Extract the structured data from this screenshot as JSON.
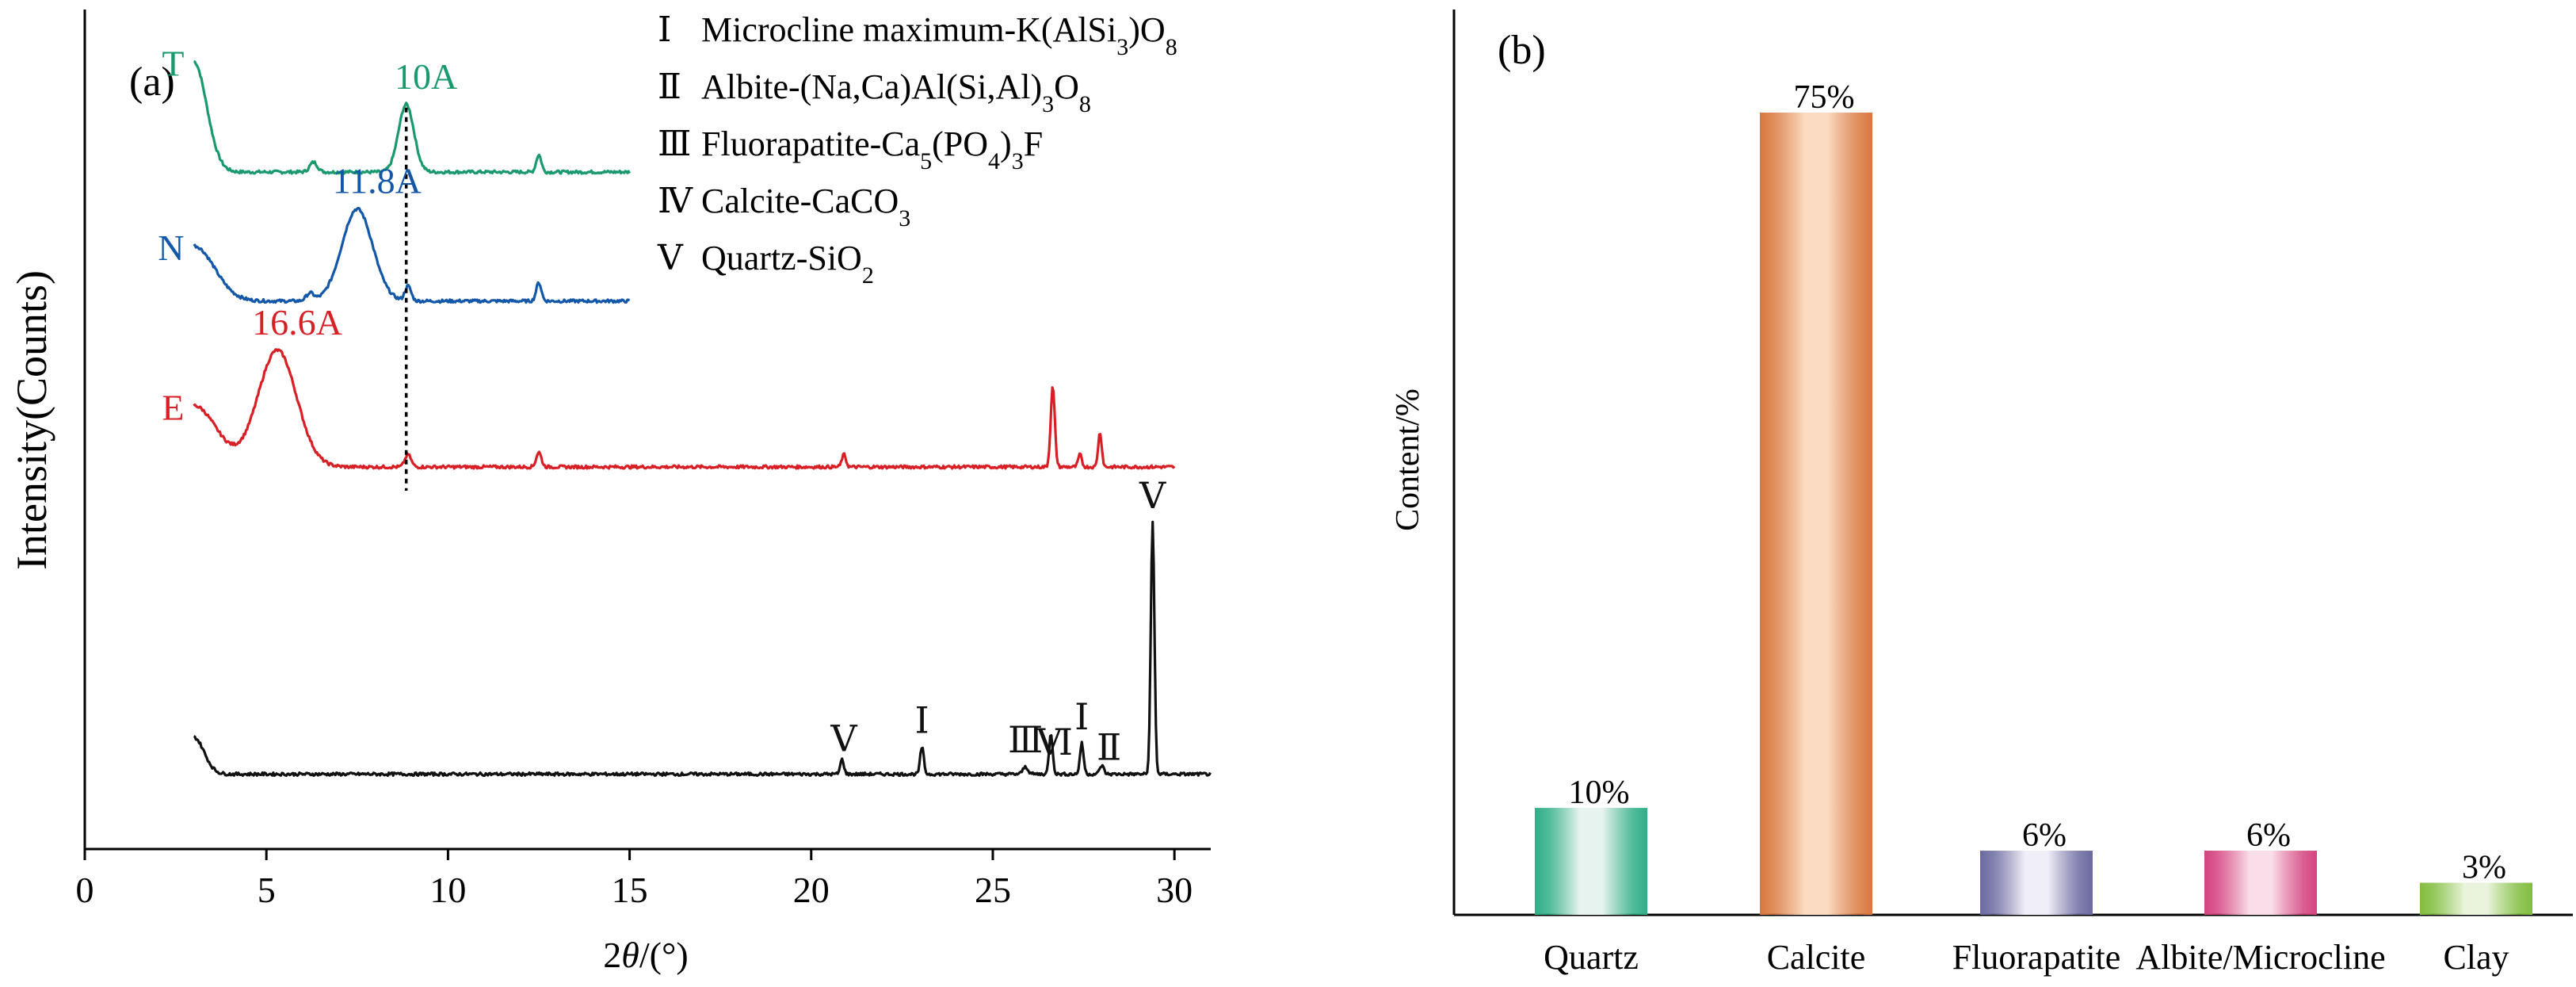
{
  "chart_data": [
    {
      "panel_label": "(a)",
      "type": "line",
      "xlabel": "2θ/(°)",
      "ylabel": "Intensity(Counts)",
      "xlim": [
        0,
        31
      ],
      "x_ticks": [
        0,
        5,
        10,
        15,
        20,
        25,
        30
      ],
      "x_tick_labels": [
        "0",
        "5",
        "10",
        "15",
        "20",
        "25",
        "30"
      ],
      "y_ticks": "none",
      "grid": false,
      "legend_position": "top-center",
      "legend": {
        "entries": [
          {
            "numeral": "Ⅰ",
            "text": "Microcline maximum-K(AlSi",
            "sub1": "3",
            "mid": ")O",
            "sub2": "8",
            "tail": ""
          },
          {
            "numeral": "Ⅱ",
            "text": "Albite-(Na,Ca)Al(Si,Al)",
            "sub1": "3",
            "mid": "O",
            "sub2": "8",
            "tail": ""
          },
          {
            "numeral": "Ⅲ",
            "text": "Fluorapatite-Ca",
            "sub1": "5",
            "mid": "(PO",
            "sub2": "4",
            "tail": ")",
            "sub3": "3",
            "tail2": "F"
          },
          {
            "numeral": "Ⅳ",
            "text": "Calcite-CaCO",
            "sub1": "3",
            "mid": "",
            "sub2": "",
            "tail": ""
          },
          {
            "numeral": "Ⅴ",
            "text": "Quartz-SiO",
            "sub1": "2",
            "mid": "",
            "sub2": "",
            "tail": ""
          }
        ]
      },
      "series": [
        {
          "name": "T",
          "color": "#1a9a6c",
          "x_range": [
            3,
            15
          ],
          "baseline": 2.6,
          "peaks": [
            {
              "x": 3.0,
              "height": 0.9,
              "width": 0.5
            },
            {
              "x": 6.3,
              "height": 0.08,
              "width": 0.15
            },
            {
              "x": 8.85,
              "height": 0.55,
              "width": 0.3
            },
            {
              "x": 12.5,
              "height": 0.14,
              "width": 0.1
            }
          ],
          "peak_label": {
            "x": 8.85,
            "text": "10A"
          }
        },
        {
          "name": "N",
          "color": "#1357a8",
          "x_range": [
            3,
            15
          ],
          "baseline": 1.55,
          "peaks": [
            {
              "x": 3.0,
              "height": 0.45,
              "width": 0.8
            },
            {
              "x": 7.5,
              "height": 0.75,
              "width": 0.6
            },
            {
              "x": 6.2,
              "height": 0.06,
              "width": 0.15
            },
            {
              "x": 8.9,
              "height": 0.12,
              "width": 0.12
            },
            {
              "x": 12.5,
              "height": 0.15,
              "width": 0.1
            }
          ],
          "peak_label": {
            "x": 7.5,
            "text": "11.8A"
          }
        },
        {
          "name": "E",
          "color": "#d91f26",
          "x_range": [
            3,
            30
          ],
          "baseline": 0.2,
          "peaks": [
            {
              "x": 3.0,
              "height": 0.5,
              "width": 0.9
            },
            {
              "x": 5.3,
              "height": 0.95,
              "width": 0.75
            },
            {
              "x": 8.9,
              "height": 0.1,
              "width": 0.12
            },
            {
              "x": 12.5,
              "height": 0.12,
              "width": 0.1
            },
            {
              "x": 20.9,
              "height": 0.1,
              "width": 0.08
            },
            {
              "x": 26.65,
              "height": 0.65,
              "width": 0.08
            },
            {
              "x": 27.4,
              "height": 0.1,
              "width": 0.07
            },
            {
              "x": 27.95,
              "height": 0.28,
              "width": 0.07
            }
          ],
          "peak_label": {
            "x": 5.3,
            "text": "16.6A"
          }
        },
        {
          "name": "",
          "color": "#111111",
          "x_range": [
            3,
            31
          ],
          "baseline": -2.3,
          "peaks": [
            {
              "x": 3.0,
              "height": 0.3,
              "width": 0.4
            },
            {
              "x": 20.85,
              "height": 0.12,
              "width": 0.07
            },
            {
              "x": 23.05,
              "height": 0.22,
              "width": 0.07
            },
            {
              "x": 25.9,
              "height": 0.06,
              "width": 0.1
            },
            {
              "x": 26.6,
              "height": 0.33,
              "width": 0.07
            },
            {
              "x": 27.45,
              "height": 0.25,
              "width": 0.07
            },
            {
              "x": 28.0,
              "height": 0.07,
              "width": 0.08
            },
            {
              "x": 29.4,
              "height": 2.05,
              "width": 0.07
            }
          ],
          "peak_markers": [
            {
              "x": 20.9,
              "text": "Ⅴ"
            },
            {
              "x": 23.05,
              "text": "Ⅰ"
            },
            {
              "x": 25.9,
              "text": "Ⅲ"
            },
            {
              "x": 26.7,
              "text": "Ⅵ"
            },
            {
              "x": 27.45,
              "text": "Ⅰ"
            },
            {
              "x": 28.2,
              "text": "Ⅱ"
            },
            {
              "x": 29.4,
              "text": "Ⅴ"
            }
          ]
        }
      ],
      "reference_line": {
        "x": 8.85,
        "style": "dashed",
        "color": "#000000"
      }
    },
    {
      "panel_label": "(b)",
      "type": "bar",
      "xlabel": "",
      "ylabel": "Content/%",
      "ylim": [
        0,
        75
      ],
      "y_ticks": "none",
      "grid": false,
      "categories": [
        "Quartz",
        "Calcite",
        "Fluorapatite",
        "Albite/Microcline",
        "Clay"
      ],
      "values": [
        10,
        75,
        6,
        6,
        3
      ],
      "value_labels": [
        "10%",
        "75%",
        "6%",
        "6%",
        "3%"
      ],
      "colors": [
        {
          "edge": "#2fae87",
          "center": "#e7f3ee"
        },
        {
          "edge": "#d9783f",
          "center": "#fbdcc2"
        },
        {
          "edge": "#6b6aa0",
          "center": "#f0eff7"
        },
        {
          "edge": "#d4437f",
          "center": "#f9dde9"
        },
        {
          "edge": "#82bd3f",
          "center": "#eaf4dc"
        }
      ]
    }
  ]
}
